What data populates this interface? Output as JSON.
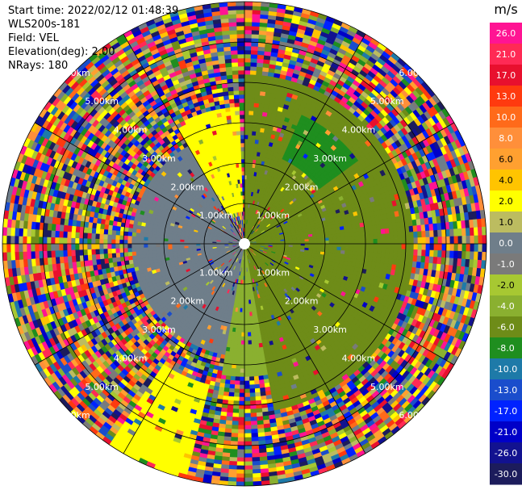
{
  "header": {
    "start_time": "Start time: 2022/02/12 01:48:39",
    "instrument": "WLS200s-181",
    "field": "Field: VEL",
    "elevation": "Elevation(deg): 2.00",
    "nrays": "NRays: 180"
  },
  "chart_data": {
    "type": "heatmap",
    "projection": "polar-ppi",
    "field": "VEL",
    "units": "m/s",
    "elevation_deg": 2.0,
    "n_rays": 180,
    "max_range_km": 6.0,
    "range_rings_km": [
      1,
      2,
      3,
      4,
      5,
      6
    ],
    "range_ring_labels": [
      "1.00km",
      "2.00km",
      "3.00km",
      "4.00km",
      "5.00km",
      "6.00km"
    ],
    "radial_spoke_step_deg": 30,
    "colorbar": {
      "label": "m/s",
      "tick_labels": [
        "26.0",
        "21.0",
        "17.0",
        "13.0",
        "10.0",
        "8.0",
        "6.0",
        "4.0",
        "2.0",
        "1.0",
        "0.0",
        "-1.0",
        "-2.0",
        "-4.0",
        "-6.0",
        "-8.0",
        "-10.0",
        "-13.0",
        "-17.0",
        "-21.0",
        "-26.0",
        "-30.0"
      ],
      "colors": [
        "#ff1493",
        "#ff2a55",
        "#e8102e",
        "#ff3a0f",
        "#ff6a1a",
        "#ff8f3a",
        "#ffa030",
        "#ffc400",
        "#ffff00",
        "#bcbc60",
        "#6f7e8a",
        "#7a7a7a",
        "#a7c832",
        "#8ab030",
        "#6e8c18",
        "#1f8e1f",
        "#1e7aa8",
        "#1a4dcc",
        "#0022ff",
        "#0000c8",
        "#121290",
        "#1c1c5c"
      ]
    },
    "regions": [
      {
        "name": "inner-north-east",
        "az_from": 0,
        "az_to": 90,
        "range_km": [
          0,
          4.2
        ],
        "value": -6.0
      },
      {
        "name": "inner-north-east-blue-patch",
        "az_from": 25,
        "az_to": 55,
        "range_km": [
          2.3,
          3.5
        ],
        "value": -8.0
      },
      {
        "name": "inner-east-south",
        "az_from": 90,
        "az_to": 170,
        "range_km": [
          0,
          4.2
        ],
        "value": -6.0
      },
      {
        "name": "inner-south-olive",
        "az_from": 170,
        "az_to": 190,
        "range_km": [
          0,
          3.3
        ],
        "value": -4.0
      },
      {
        "name": "inner-south-west-grey",
        "az_from": 190,
        "az_to": 330,
        "range_km": [
          0,
          2.8
        ],
        "value": 0.0
      },
      {
        "name": "inner-north-west-yellow",
        "az_from": 330,
        "az_to": 358,
        "range_km": [
          0.8,
          3.4
        ],
        "value": 2.0
      },
      {
        "name": "inner-south-yellow-band",
        "az_from": 195,
        "az_to": 215,
        "range_km": [
          3.6,
          6.0
        ],
        "value": 2.0
      }
    ]
  }
}
